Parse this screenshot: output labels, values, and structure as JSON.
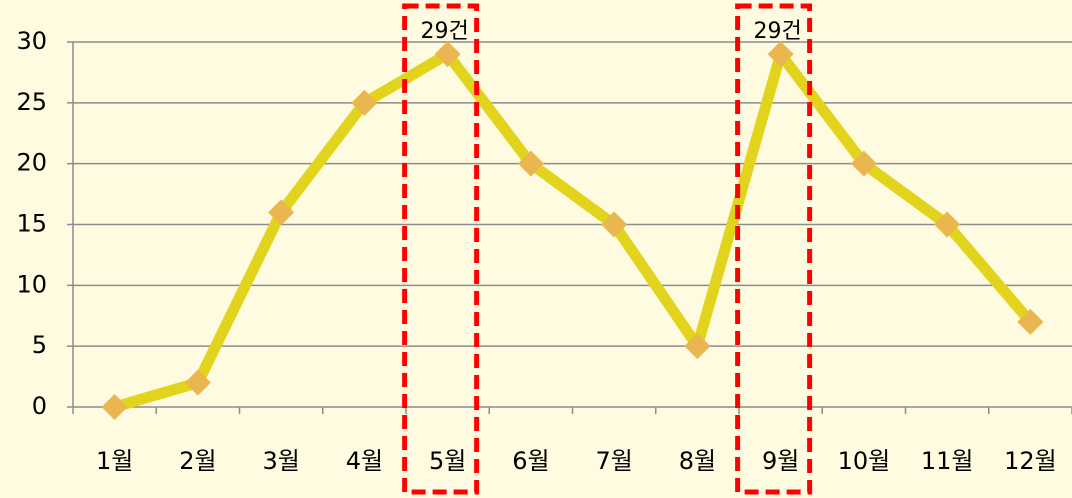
{
  "chart_data": {
    "type": "line",
    "categories": [
      "1월",
      "2월",
      "3월",
      "4월",
      "5월",
      "6월",
      "7월",
      "8월",
      "9월",
      "10월",
      "11월",
      "12월"
    ],
    "series": [
      {
        "color": "#e2d41c",
        "marker_color": "#e9b650",
        "values": [
          0,
          2,
          16,
          25,
          29,
          20,
          15,
          5,
          29,
          20,
          15,
          7
        ],
        "value_labels": [
          null,
          null,
          null,
          null,
          "29건",
          null,
          null,
          null,
          "29건",
          null,
          null,
          null
        ]
      }
    ],
    "ylim": [
      0,
      30
    ],
    "yticks": [
      0,
      5,
      10,
      15,
      20,
      25,
      30
    ],
    "grid": true,
    "highlight_color": "#ff0000"
  }
}
